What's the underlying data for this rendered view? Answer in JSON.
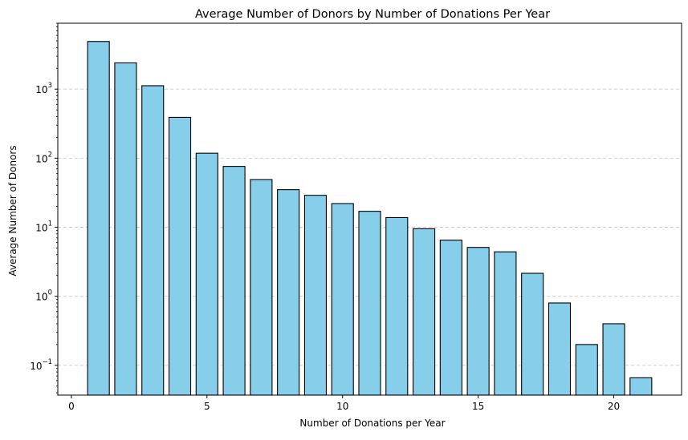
{
  "chart_data": {
    "type": "bar",
    "title": "Average Number of Donors by Number of Donations Per Year",
    "xlabel": "Number of Donations per Year",
    "ylabel": "Average Number of Donors",
    "x": [
      1,
      2,
      3,
      4,
      5,
      6,
      7,
      8,
      9,
      10,
      11,
      12,
      13,
      14,
      15,
      16,
      17,
      18,
      19,
      20,
      21
    ],
    "values": [
      4900,
      2400,
      1120,
      390,
      118,
      76,
      49,
      35,
      29,
      22,
      17,
      13.8,
      9.5,
      6.5,
      5.1,
      4.4,
      2.15,
      0.8,
      0.2,
      0.4,
      0.066
    ],
    "xlim": [
      -0.5,
      22.5
    ],
    "ylim": [
      0.037,
      9000
    ],
    "yscale": "log",
    "x_ticks": [
      0,
      5,
      10,
      15,
      20
    ],
    "y_ticks": [
      {
        "value": 0.1,
        "base": "10",
        "exp": "−1"
      },
      {
        "value": 1,
        "base": "10",
        "exp": "0"
      },
      {
        "value": 10,
        "base": "10",
        "exp": "1"
      },
      {
        "value": 100,
        "base": "10",
        "exp": "2"
      },
      {
        "value": 1000,
        "base": "10",
        "exp": "3"
      }
    ],
    "grid": {
      "axis": "y",
      "style": "dashed"
    },
    "colors": {
      "bar_fill": "#87ceeb",
      "bar_edge": "#000000",
      "grid": "#c8c8c8"
    }
  }
}
